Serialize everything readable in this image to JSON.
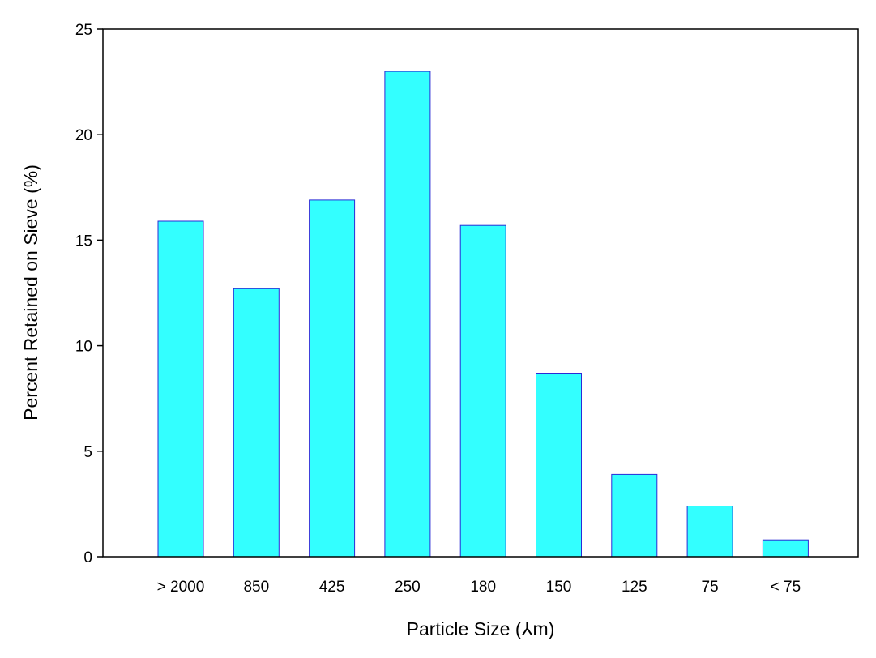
{
  "chart_data": {
    "type": "bar",
    "title": "",
    "xlabel": "Particle Size (⅄m)",
    "ylabel": "Percent Retained on Sieve (%)",
    "categories": [
      "> 2000",
      "850",
      "425",
      "250",
      "180",
      "150",
      "125",
      "75",
      "< 75"
    ],
    "values": [
      15.9,
      12.7,
      16.9,
      23.0,
      15.7,
      8.7,
      3.9,
      2.4,
      0.8
    ],
    "ylim": [
      0,
      25
    ],
    "yticks": [
      0,
      5,
      10,
      15,
      20,
      25
    ],
    "grid": false,
    "legend": "none",
    "bar_fill": "#33ffff",
    "bar_stroke": "#2b2bd6",
    "frame_color": "#000000"
  }
}
